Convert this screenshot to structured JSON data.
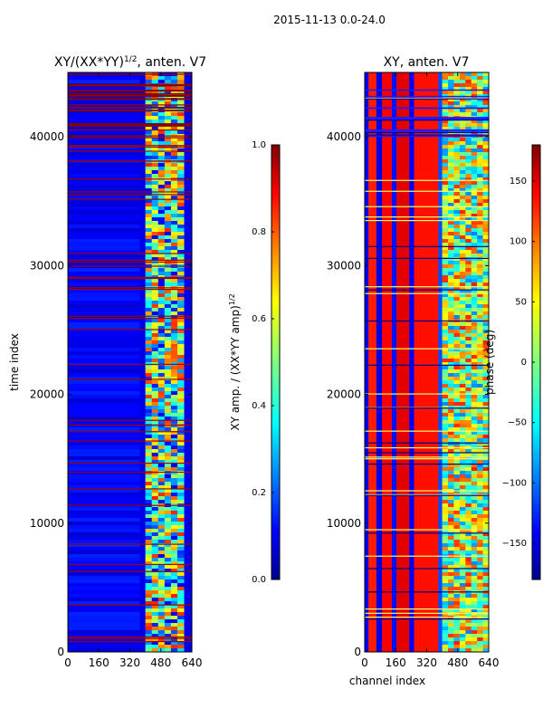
{
  "figure_title": "2015-11-13 0.0-24.0",
  "colors": {
    "background": "#ffffff",
    "jet_dark_blue": "#00008f",
    "jet_blue": "#0000ff",
    "jet_cyan": "#00ffff",
    "jet_yellow": "#ffff00",
    "jet_red": "#ff0000",
    "jet_dark_red": "#800000"
  },
  "chart_data": [
    {
      "type": "heatmap",
      "title": "XY/(XX*YY)",
      "title_sup": "1/2",
      "title_suffix": ", anten. V7",
      "xlabel": "",
      "ylabel": "time index",
      "xlim": [
        0,
        640
      ],
      "ylim": [
        0,
        45000
      ],
      "xticks": [
        0,
        160,
        320,
        480,
        640
      ],
      "yticks": [
        0,
        10000,
        20000,
        30000,
        40000
      ],
      "colorbar": {
        "label": "XY amp. / (XX*YY amp)",
        "label_sup": "1/2",
        "range": [
          0.0,
          1.0
        ],
        "ticks": [
          "0.0",
          "0.2",
          "0.4",
          "0.6",
          "0.8",
          "1.0"
        ],
        "colormap": "jet"
      },
      "description_regions": [
        {
          "channels": [
            0,
            400
          ],
          "value": 0.08
        },
        {
          "channels": [
            400,
            600
          ],
          "value": 0.55
        }
      ]
    },
    {
      "type": "heatmap",
      "title": "XY, anten. V7",
      "xlabel": "channel index",
      "ylabel": "",
      "xlim": [
        0,
        640
      ],
      "ylim": [
        0,
        45000
      ],
      "xticks": [
        0,
        160,
        320,
        480,
        640
      ],
      "yticks": [
        0,
        10000,
        20000,
        30000,
        40000
      ],
      "colorbar": {
        "label": "phase (deg)",
        "range": [
          -180,
          180
        ],
        "ticks": [
          "−150",
          "−100",
          "−50",
          "0",
          "50",
          "100",
          "150"
        ],
        "tick_values": [
          -150,
          -100,
          -50,
          0,
          50,
          100,
          150
        ],
        "colormap": "jet"
      }
    }
  ]
}
